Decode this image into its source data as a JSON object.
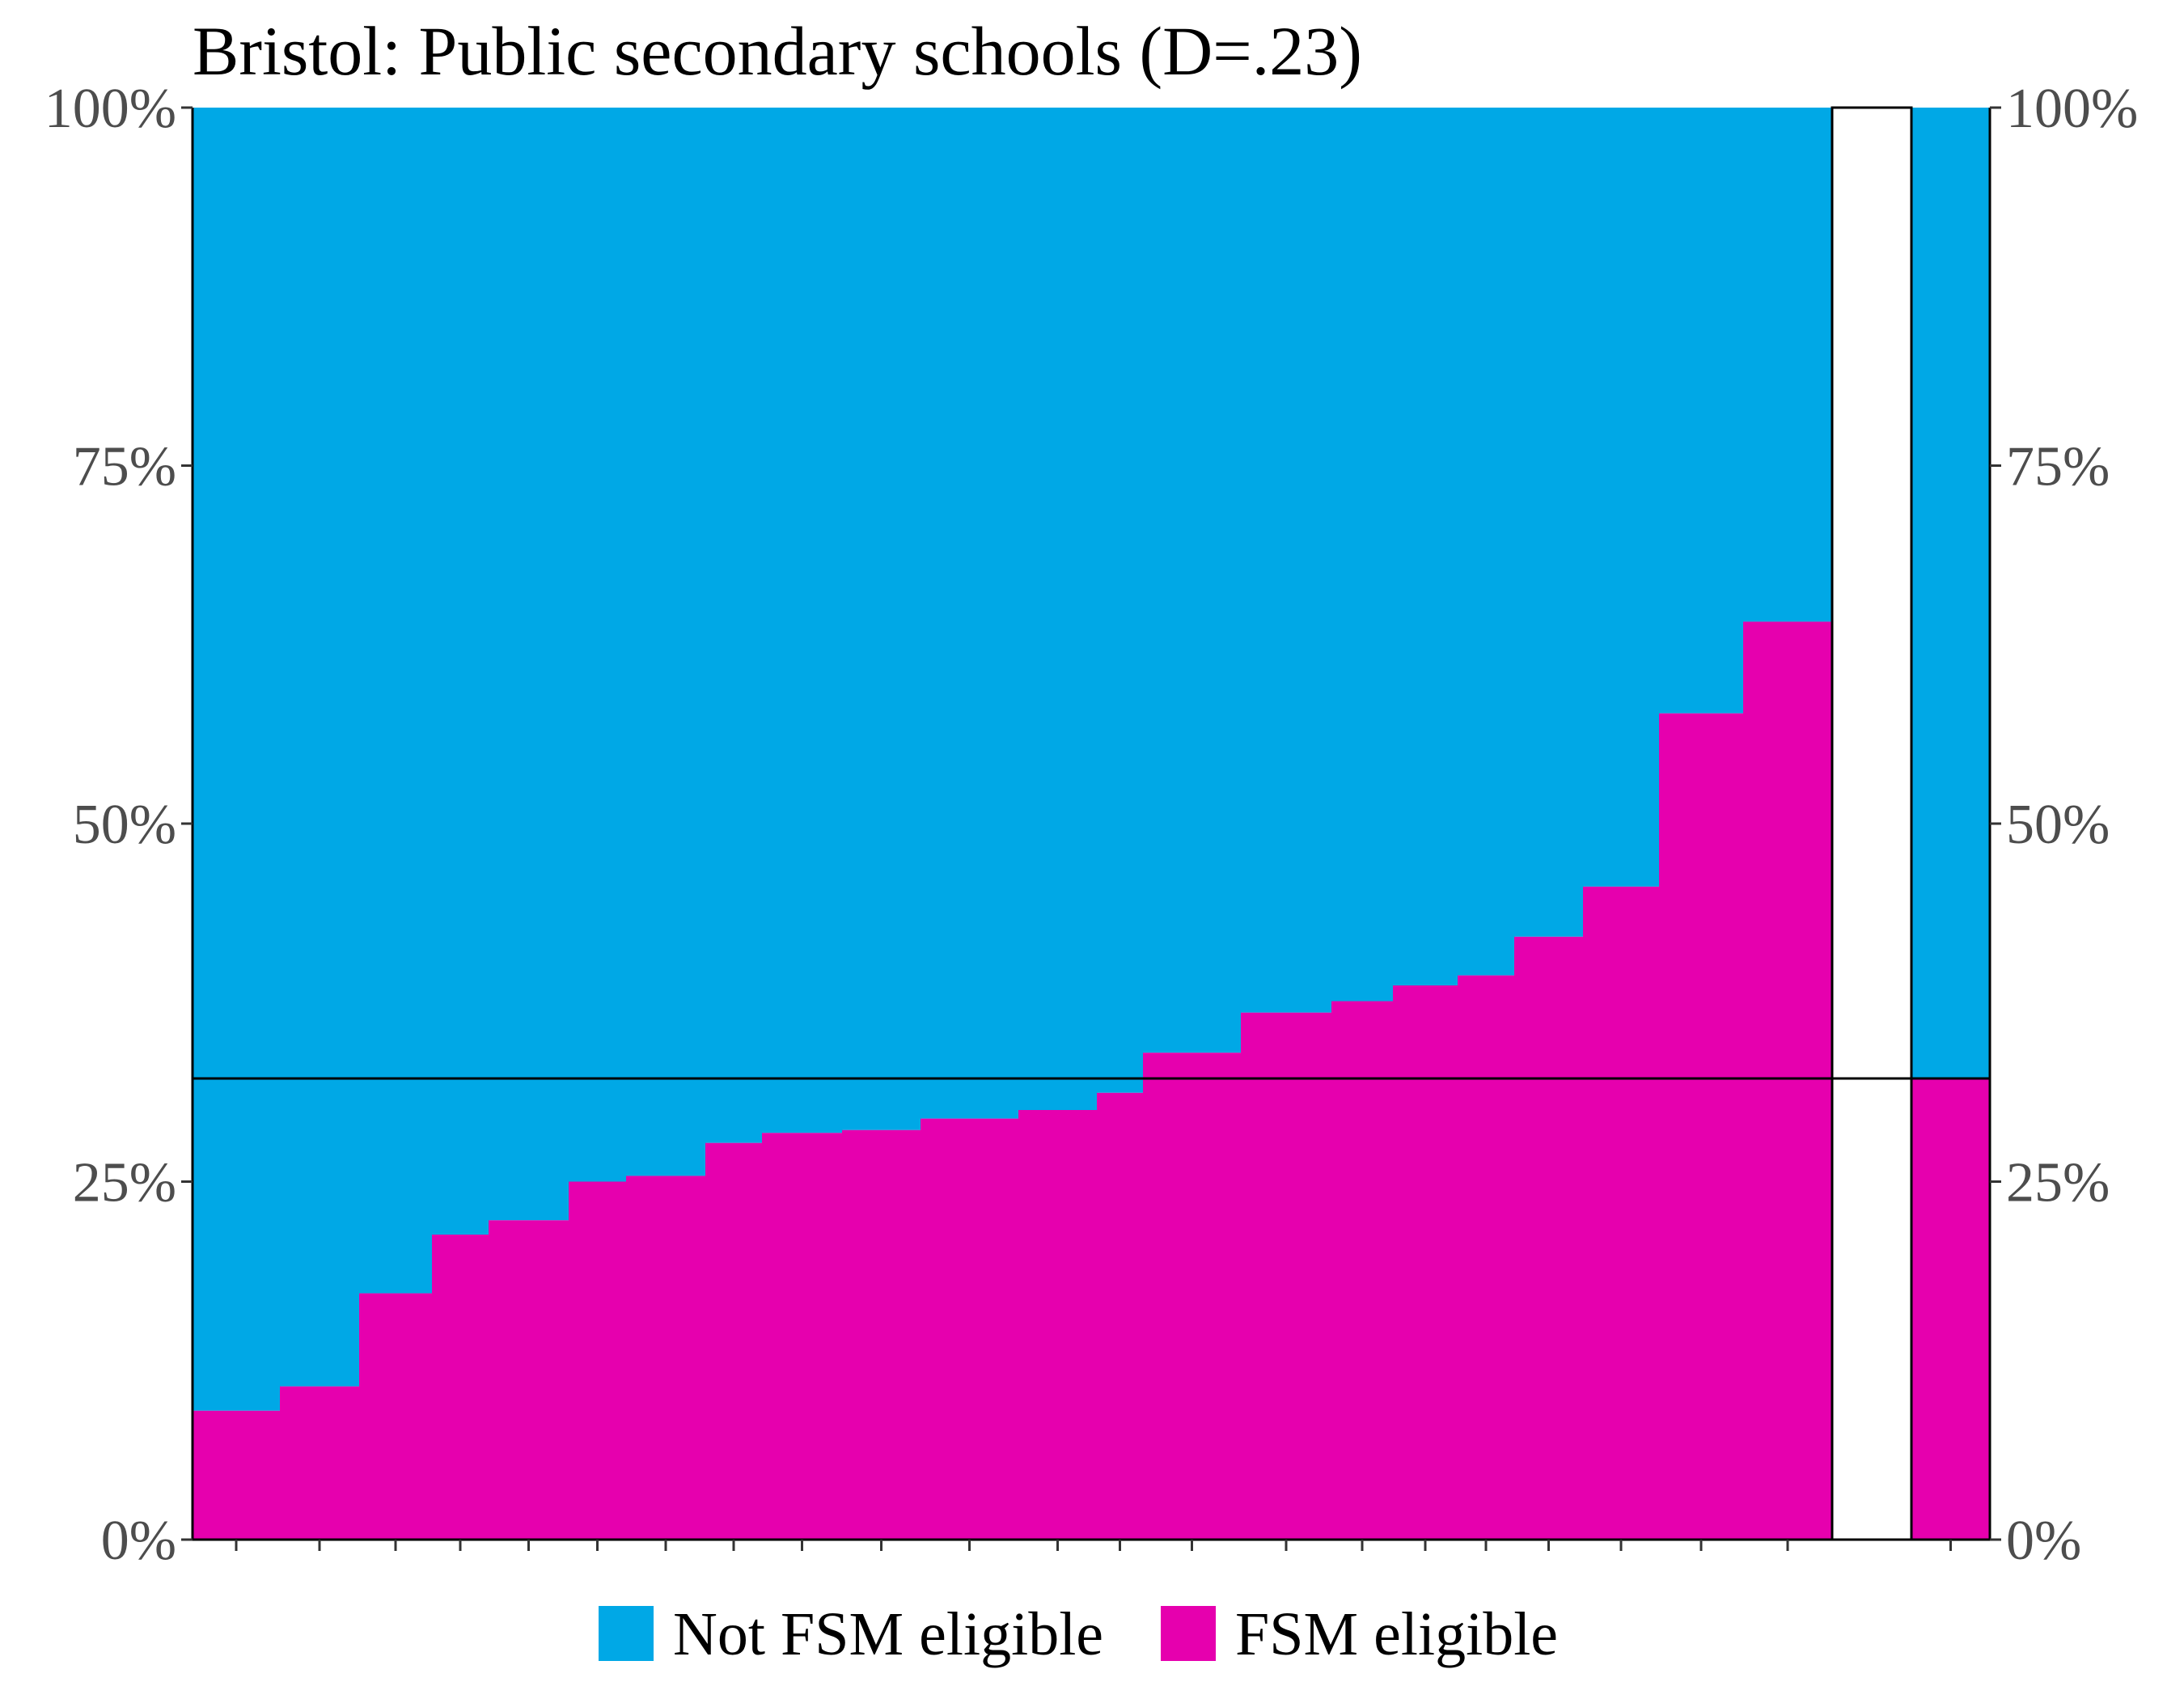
{
  "chart_data": {
    "type": "bar",
    "title": "Bristol: Public secondary schools (D=.23)",
    "xlabel": "",
    "ylabel": "",
    "ylim": [
      0,
      1
    ],
    "y_ticks": [
      {
        "value": 0,
        "label": "0%"
      },
      {
        "value": 0.25,
        "label": "25%"
      },
      {
        "value": 0.5,
        "label": "50%"
      },
      {
        "value": 0.75,
        "label": "75%"
      },
      {
        "value": 1,
        "label": "100%"
      }
    ],
    "stacked": true,
    "variable_width": true,
    "x_axis_ticks_only": true,
    "legend_position": "bottom",
    "colors": {
      "not_fsm": "#00A8E6",
      "fsm": "#E600AE",
      "reference_line": "#000000"
    },
    "series": [
      {
        "name": "Not FSM eligible",
        "color": "#00A8E6"
      },
      {
        "name": "FSM eligible",
        "color": "#E600AE"
      }
    ],
    "schools": [
      {
        "width": 108,
        "fsm_share": 0.09
      },
      {
        "width": 98,
        "fsm_share": 0.107
      },
      {
        "width": 90,
        "fsm_share": 0.172
      },
      {
        "width": 70,
        "fsm_share": 0.213
      },
      {
        "width": 99,
        "fsm_share": 0.223
      },
      {
        "width": 71,
        "fsm_share": 0.25
      },
      {
        "width": 98,
        "fsm_share": 0.254
      },
      {
        "width": 70,
        "fsm_share": 0.277
      },
      {
        "width": 99,
        "fsm_share": 0.284
      },
      {
        "width": 97,
        "fsm_share": 0.286
      },
      {
        "width": 121,
        "fsm_share": 0.294
      },
      {
        "width": 97,
        "fsm_share": 0.3
      },
      {
        "width": 57,
        "fsm_share": 0.312
      },
      {
        "width": 121,
        "fsm_share": 0.34
      },
      {
        "width": 112,
        "fsm_share": 0.368
      },
      {
        "width": 76,
        "fsm_share": 0.376
      },
      {
        "width": 80,
        "fsm_share": 0.387
      },
      {
        "width": 70,
        "fsm_share": 0.394
      },
      {
        "width": 85,
        "fsm_share": 0.421
      },
      {
        "width": 94,
        "fsm_share": 0.456
      },
      {
        "width": 104,
        "fsm_share": 0.577
      },
      {
        "width": 110,
        "fsm_share": 0.641
      }
    ],
    "overall_fsm_share": 0.322
  }
}
